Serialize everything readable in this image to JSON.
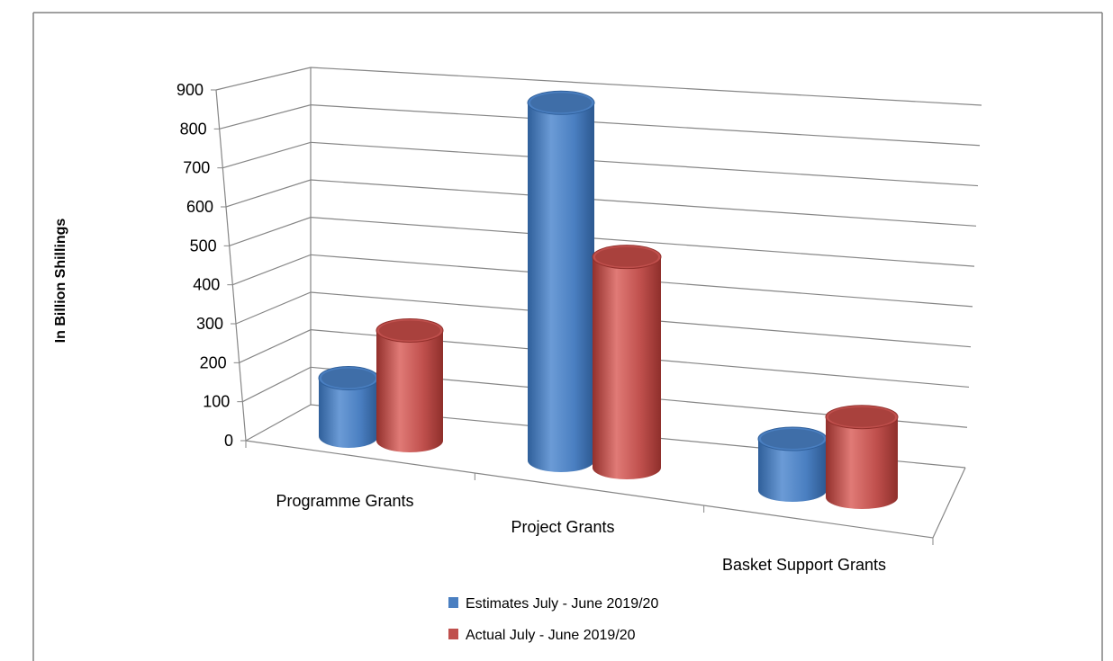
{
  "chart_data": {
    "type": "bar",
    "subtype": "3d-cylinder-clustered",
    "title": "",
    "categories": [
      "Programme Grants",
      "Project Grants",
      "Basket Support Grants"
    ],
    "series": [
      {
        "name": "Estimates July - June 2019/20",
        "color": "#4a7fc1",
        "values": [
          150,
          925,
          150
        ]
      },
      {
        "name": "Actual July  - June 2019/20",
        "color": "#c0504d",
        "values": [
          285,
          545,
          235
        ]
      }
    ],
    "ylabel": "In Billion Shillings",
    "xlabel": "",
    "ylim": [
      0,
      900
    ],
    "yticks": [
      "0",
      "100",
      "200",
      "300",
      "400",
      "500",
      "600",
      "700",
      "800",
      "900"
    ],
    "grid": true,
    "legend_position": "bottom"
  }
}
